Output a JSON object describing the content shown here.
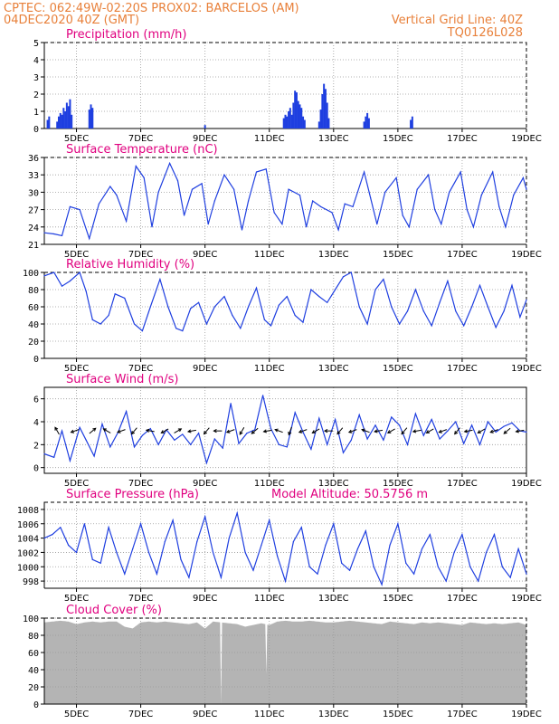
{
  "header": {
    "line1": "CPTEC:   062:49W-02:20S   PROX02: BARCELOS (AM)",
    "line2": "04DEC2020 40Z (GMT)",
    "grid_note": "Vertical Grid Line: 40Z",
    "code": "TQ0126L028"
  },
  "colors": {
    "header": "#e8803a",
    "title": "#e0007f",
    "series": "#1f3fe0",
    "cloud": "#b4b4b4",
    "grid": "#9a9a9a"
  },
  "x_axis": {
    "start_day": 4,
    "end_day": 19,
    "tick_days": [
      5,
      7,
      9,
      11,
      13,
      15,
      17,
      19
    ],
    "tick_labels": [
      "5DEC",
      "7DEC",
      "9DEC",
      "11DEC",
      "13DEC",
      "15DEC",
      "17DEC",
      "19DEC"
    ]
  },
  "chart_data": [
    {
      "type": "bar",
      "title": "Precipitation (mm/h)",
      "ylim": [
        0,
        5
      ],
      "yticks": [
        0,
        1,
        2,
        3,
        4,
        5
      ],
      "x": [
        4.1,
        4.15,
        4.4,
        4.45,
        4.5,
        4.55,
        4.6,
        4.65,
        4.7,
        4.75,
        4.8,
        4.85,
        5.4,
        5.45,
        5.5,
        9.0,
        11.45,
        11.5,
        11.55,
        11.6,
        11.65,
        11.7,
        11.75,
        11.8,
        11.85,
        11.9,
        11.95,
        12.0,
        12.05,
        12.1,
        12.55,
        12.6,
        12.65,
        12.7,
        12.75,
        12.8,
        12.85,
        13.95,
        14.0,
        14.05,
        14.1,
        15.4,
        15.45
      ],
      "values": [
        0.5,
        0.7,
        0.4,
        0.7,
        0.9,
        0.8,
        1.2,
        1.0,
        1.5,
        1.3,
        1.7,
        0.8,
        1.1,
        1.4,
        1.2,
        0.2,
        0.6,
        0.8,
        0.7,
        1.0,
        1.2,
        0.8,
        1.5,
        2.2,
        2.1,
        1.6,
        1.4,
        1.2,
        0.7,
        0.5,
        0.4,
        1.1,
        2.0,
        2.6,
        2.3,
        1.5,
        0.6,
        0.4,
        0.7,
        0.9,
        0.6,
        0.5,
        0.7
      ]
    },
    {
      "type": "line",
      "title": "Surface Temperature (nC)",
      "ylim": [
        21,
        36
      ],
      "yticks": [
        21,
        24,
        27,
        30,
        33,
        36
      ],
      "x": [
        4.0,
        4.3,
        4.55,
        4.8,
        5.1,
        5.4,
        5.7,
        6.05,
        6.25,
        6.55,
        6.85,
        7.1,
        7.35,
        7.55,
        7.9,
        8.15,
        8.35,
        8.6,
        8.9,
        9.1,
        9.3,
        9.6,
        9.9,
        10.15,
        10.35,
        10.6,
        10.9,
        11.15,
        11.4,
        11.6,
        11.95,
        12.15,
        12.35,
        12.6,
        12.95,
        13.15,
        13.35,
        13.6,
        13.95,
        14.15,
        14.35,
        14.6,
        14.95,
        15.15,
        15.35,
        15.6,
        15.95,
        16.15,
        16.35,
        16.6,
        16.95,
        17.15,
        17.35,
        17.6,
        17.95,
        18.15,
        18.35,
        18.6,
        18.9,
        19.0
      ],
      "values": [
        23.0,
        22.8,
        22.5,
        27.5,
        27.0,
        22.0,
        28.0,
        31.0,
        29.5,
        25.0,
        34.5,
        32.5,
        24.0,
        30.0,
        35.0,
        32.0,
        26.0,
        30.5,
        31.5,
        24.5,
        28.5,
        33.0,
        30.5,
        23.5,
        28.5,
        33.5,
        34.0,
        26.5,
        24.5,
        30.5,
        29.5,
        24.0,
        28.5,
        27.5,
        26.5,
        23.5,
        28.0,
        27.5,
        33.5,
        29.0,
        24.5,
        30.0,
        32.5,
        26.0,
        24.0,
        30.5,
        33.0,
        27.0,
        24.5,
        30.0,
        33.5,
        27.0,
        24.0,
        29.5,
        33.5,
        27.5,
        24.0,
        29.5,
        32.5,
        30.5
      ]
    },
    {
      "type": "line",
      "title": "Relative Humidity (%)",
      "ylim": [
        0,
        100
      ],
      "yticks": [
        0,
        20,
        40,
        60,
        80,
        100
      ],
      "x": [
        4.0,
        4.3,
        4.55,
        4.8,
        5.1,
        5.3,
        5.5,
        5.75,
        6.0,
        6.2,
        6.5,
        6.8,
        7.05,
        7.3,
        7.6,
        7.85,
        8.1,
        8.3,
        8.55,
        8.8,
        9.05,
        9.3,
        9.6,
        9.85,
        10.1,
        10.35,
        10.6,
        10.85,
        11.05,
        11.3,
        11.55,
        11.8,
        12.05,
        12.3,
        12.55,
        12.8,
        13.05,
        13.3,
        13.55,
        13.8,
        14.05,
        14.3,
        14.55,
        14.8,
        15.05,
        15.3,
        15.55,
        15.8,
        16.05,
        16.3,
        16.55,
        16.8,
        17.05,
        17.3,
        17.55,
        17.8,
        18.05,
        18.3,
        18.55,
        18.8,
        19.0
      ],
      "values": [
        96,
        100,
        84,
        90,
        100,
        78,
        45,
        40,
        50,
        75,
        70,
        40,
        32,
        60,
        92,
        60,
        35,
        32,
        58,
        65,
        40,
        60,
        72,
        50,
        35,
        60,
        82,
        45,
        38,
        62,
        72,
        50,
        42,
        80,
        72,
        65,
        80,
        95,
        100,
        60,
        40,
        80,
        92,
        60,
        40,
        55,
        80,
        55,
        38,
        65,
        90,
        55,
        38,
        60,
        85,
        60,
        36,
        55,
        85,
        48,
        68
      ]
    },
    {
      "type": "line",
      "title": "Surface Wind (m/s)",
      "ylim": [
        -0.5,
        7
      ],
      "yticks": [
        0,
        2,
        4,
        6
      ],
      "x": [
        4.0,
        4.3,
        4.55,
        4.8,
        5.1,
        5.3,
        5.55,
        5.8,
        6.05,
        6.3,
        6.55,
        6.8,
        7.05,
        7.3,
        7.55,
        7.8,
        8.05,
        8.3,
        8.55,
        8.8,
        9.05,
        9.3,
        9.55,
        9.8,
        10.05,
        10.3,
        10.55,
        10.8,
        11.05,
        11.3,
        11.55,
        11.8,
        12.05,
        12.3,
        12.55,
        12.8,
        13.05,
        13.3,
        13.55,
        13.8,
        14.05,
        14.3,
        14.55,
        14.8,
        15.05,
        15.3,
        15.55,
        15.8,
        16.05,
        16.3,
        16.55,
        16.8,
        17.05,
        17.3,
        17.55,
        17.8,
        18.05,
        18.3,
        18.55,
        18.8,
        19.0
      ],
      "values": [
        1.2,
        0.9,
        3.2,
        0.6,
        3.5,
        2.4,
        1.0,
        3.8,
        1.8,
        3.1,
        4.9,
        1.8,
        2.8,
        3.4,
        2.0,
        3.3,
        2.4,
        2.9,
        2.0,
        3.0,
        0.4,
        2.5,
        1.7,
        5.6,
        2.1,
        3.0,
        3.3,
        6.3,
        3.4,
        2.0,
        1.8,
        4.8,
        3.1,
        1.6,
        4.3,
        2.0,
        4.2,
        1.3,
        2.4,
        4.6,
        2.5,
        3.7,
        2.4,
        4.4,
        3.7,
        2.0,
        4.7,
        2.8,
        4.2,
        2.5,
        3.2,
        4.0,
        2.1,
        3.7,
        2.0,
        4.0,
        3.1,
        3.6,
        3.9,
        3.2,
        3.1
      ],
      "vectors_x": [
        4.4,
        4.95,
        5.5,
        5.95,
        6.4,
        6.8,
        7.3,
        7.75,
        8.15,
        8.6,
        9.05,
        9.4,
        9.8,
        10.15,
        10.55,
        10.95,
        11.3,
        11.65,
        12.05,
        12.45,
        12.85,
        13.2,
        13.6,
        14.0,
        14.4,
        14.8,
        15.2,
        15.6,
        16.0,
        16.4,
        16.85,
        17.2,
        17.6,
        18.0,
        18.4,
        18.8
      ],
      "vectors_angle_deg": [
        120,
        200,
        40,
        150,
        200,
        230,
        170,
        210,
        30,
        190,
        230,
        180,
        200,
        240,
        220,
        190,
        160,
        250,
        200,
        210,
        180,
        230,
        200,
        160,
        190,
        210,
        230,
        190,
        210,
        200,
        230,
        190,
        210,
        200,
        220,
        190
      ]
    },
    {
      "type": "line",
      "title": "Surface Pressure (hPa)",
      "annotation": "Model Altitude: 50.5756 m",
      "ylim": [
        997,
        1009
      ],
      "yticks": [
        998,
        1000,
        1002,
        1004,
        1006,
        1008
      ],
      "x": [
        4.0,
        4.25,
        4.5,
        4.75,
        5.0,
        5.25,
        5.5,
        5.75,
        6.0,
        6.25,
        6.5,
        6.75,
        7.0,
        7.25,
        7.5,
        7.75,
        8.0,
        8.25,
        8.5,
        8.75,
        9.0,
        9.25,
        9.5,
        9.75,
        10.0,
        10.25,
        10.5,
        10.75,
        11.0,
        11.25,
        11.5,
        11.75,
        12.0,
        12.25,
        12.5,
        12.75,
        13.0,
        13.25,
        13.5,
        13.75,
        14.0,
        14.25,
        14.5,
        14.75,
        15.0,
        15.25,
        15.5,
        15.75,
        16.0,
        16.25,
        16.5,
        16.75,
        17.0,
        17.25,
        17.5,
        17.75,
        18.0,
        18.25,
        18.5,
        18.75,
        19.0
      ],
      "values": [
        1004.0,
        1004.5,
        1005.5,
        1003.0,
        1002.0,
        1006.0,
        1001.0,
        1000.5,
        1005.5,
        1002.0,
        999.0,
        1002.5,
        1006.0,
        1002.0,
        999.0,
        1003.5,
        1006.5,
        1001.0,
        998.5,
        1003.5,
        1007.0,
        1002.0,
        998.5,
        1004.0,
        1007.5,
        1002.0,
        999.5,
        1003.0,
        1006.5,
        1001.5,
        998.0,
        1003.5,
        1005.5,
        1000.0,
        999.0,
        1003.0,
        1006.0,
        1000.5,
        999.5,
        1002.5,
        1005.0,
        1000.0,
        997.5,
        1003.0,
        1006.0,
        1000.5,
        999.0,
        1002.5,
        1004.5,
        1000.0,
        998.0,
        1002.0,
        1004.5,
        1000.0,
        998.0,
        1002.0,
        1004.5,
        1000.0,
        998.5,
        1002.5,
        999.0
      ]
    },
    {
      "type": "area",
      "title": "Cloud Cover (%)",
      "ylim": [
        0,
        100
      ],
      "yticks": [
        0,
        20,
        40,
        60,
        80,
        100
      ],
      "x": [
        4.0,
        4.25,
        4.5,
        4.75,
        5.0,
        5.25,
        5.5,
        5.75,
        6.0,
        6.25,
        6.5,
        6.75,
        7.0,
        7.25,
        7.5,
        7.75,
        8.0,
        8.25,
        8.5,
        8.75,
        9.0,
        9.25,
        9.5,
        9.75,
        10.0,
        10.25,
        10.5,
        10.75,
        11.0,
        11.25,
        11.5,
        11.75,
        12.0,
        12.25,
        12.5,
        12.75,
        13.0,
        13.25,
        13.5,
        13.75,
        14.0,
        14.25,
        14.5,
        14.75,
        15.0,
        15.25,
        15.5,
        15.75,
        16.0,
        16.25,
        16.5,
        16.75,
        17.0,
        17.25,
        17.5,
        17.75,
        18.0,
        18.25,
        18.5,
        18.75,
        19.0
      ],
      "values": [
        95,
        96,
        97,
        96,
        93,
        95,
        96,
        95,
        96,
        96,
        90,
        88,
        95,
        96,
        95,
        96,
        95,
        94,
        93,
        95,
        88,
        96,
        95,
        94,
        93,
        90,
        92,
        94,
        92,
        96,
        97,
        96,
        96,
        97,
        96,
        95,
        95,
        96,
        97,
        96,
        95,
        94,
        93,
        96,
        95,
        94,
        93,
        95,
        94,
        95,
        94,
        93,
        92,
        95,
        94,
        93,
        94,
        93,
        94,
        95,
        92
      ],
      "dips_x": [
        9.5,
        10.9
      ],
      "dips_value": [
        0,
        35
      ]
    }
  ]
}
